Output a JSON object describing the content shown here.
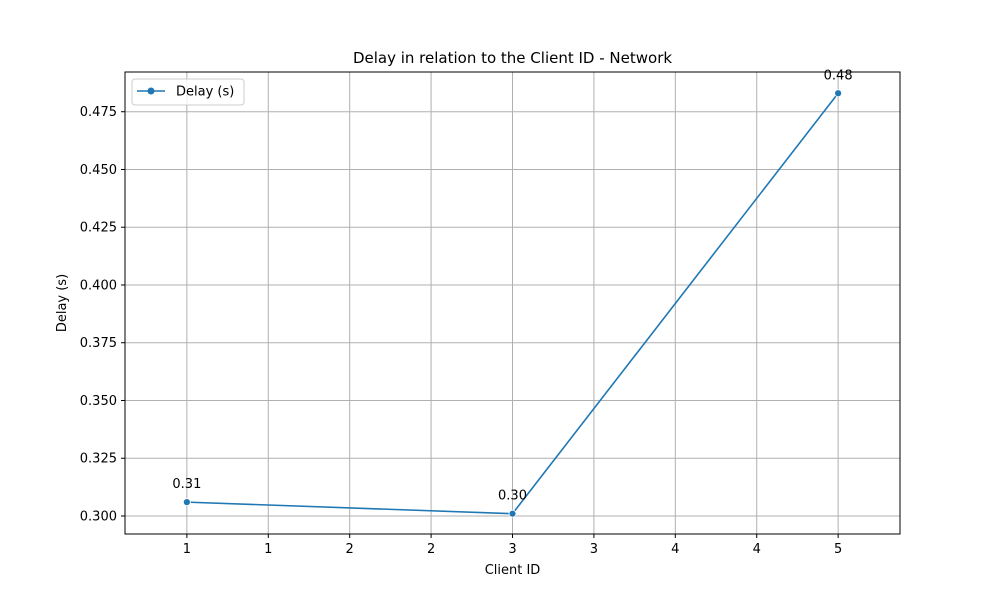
{
  "chart_data": {
    "type": "line",
    "title": "Delay in relation to the Client ID - Network",
    "xlabel": "Client ID",
    "ylabel": "Delay (s)",
    "xlim": [
      0.62,
      5.38
    ],
    "ylim": [
      0.2922,
      0.4922
    ],
    "x_ticks": [
      1,
      1.5,
      2,
      2.5,
      3,
      3.5,
      4,
      4.5,
      5
    ],
    "x_tick_labels": [
      "1",
      "1",
      "2",
      "2",
      "3",
      "3",
      "4",
      "4",
      "5"
    ],
    "y_ticks": [
      0.3,
      0.325,
      0.35,
      0.375,
      0.4,
      0.425,
      0.45,
      0.475
    ],
    "y_tick_labels": [
      "0.300",
      "0.325",
      "0.350",
      "0.375",
      "0.400",
      "0.425",
      "0.450",
      "0.475"
    ],
    "grid": true,
    "legend": {
      "position": "top-left"
    },
    "series": [
      {
        "name": "Delay (s)",
        "color": "#1f77b4",
        "marker": "circle",
        "x": [
          1,
          3,
          5
        ],
        "y": [
          0.306,
          0.301,
          0.483
        ],
        "labels": [
          "0.31",
          "0.30",
          "0.48"
        ]
      }
    ]
  }
}
